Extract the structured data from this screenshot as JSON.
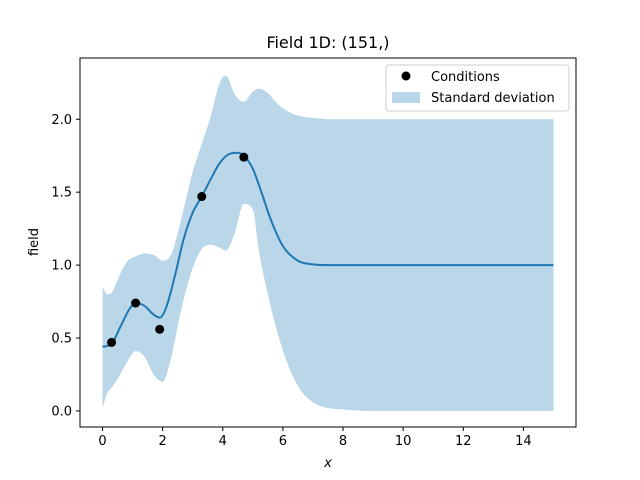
{
  "chart_data": {
    "type": "line",
    "title": "Field 1D: (151,)",
    "xlabel": "x",
    "ylabel": "field",
    "xlim": [
      -0.75,
      15.75
    ],
    "ylim": [
      -0.11,
      2.42
    ],
    "xticks": [
      "0",
      "2",
      "4",
      "6",
      "8",
      "10",
      "12",
      "14"
    ],
    "yticks": [
      "0.0",
      "0.5",
      "1.0",
      "1.5",
      "2.0"
    ],
    "xtick_values": [
      0,
      2,
      4,
      6,
      8,
      10,
      12,
      14
    ],
    "ytick_values": [
      0.0,
      0.5,
      1.0,
      1.5,
      2.0
    ],
    "grid": false,
    "legend_position": "upper right",
    "legend": [
      "Conditions",
      "Standard deviation"
    ],
    "colors": {
      "mean": "#1f77b4",
      "band": "#bad6e9",
      "conditions": "#000000"
    },
    "mean": {
      "x": [
        0.0,
        0.3,
        0.6,
        0.9,
        1.1,
        1.4,
        1.7,
        1.9,
        2.1,
        2.4,
        2.7,
        3.0,
        3.3,
        3.6,
        3.9,
        4.2,
        4.5,
        4.7,
        5.0,
        5.3,
        5.6,
        6.0,
        6.5,
        7.0,
        7.5,
        8.0,
        9.0,
        10.0,
        12.0,
        14.0,
        15.0
      ],
      "y": [
        0.44,
        0.46,
        0.58,
        0.7,
        0.74,
        0.72,
        0.66,
        0.64,
        0.7,
        0.92,
        1.18,
        1.36,
        1.47,
        1.59,
        1.7,
        1.76,
        1.77,
        1.75,
        1.66,
        1.49,
        1.31,
        1.13,
        1.03,
        1.005,
        1.0,
        1.0,
        1.0,
        1.0,
        1.0,
        1.0,
        1.0
      ]
    },
    "std_band": {
      "x": [
        0.0,
        0.15,
        0.3,
        0.5,
        0.8,
        1.1,
        1.4,
        1.7,
        2.0,
        2.3,
        2.6,
        3.0,
        3.3,
        3.6,
        3.9,
        4.1,
        4.4,
        4.7,
        5.0,
        5.2,
        5.5,
        5.8,
        6.2,
        6.6,
        7.0,
        7.5,
        8.0,
        9.0,
        10.0,
        12.0,
        14.0,
        15.0
      ],
      "lower": [
        0.02,
        0.12,
        0.16,
        0.22,
        0.33,
        0.41,
        0.37,
        0.25,
        0.2,
        0.38,
        0.68,
        0.98,
        1.11,
        1.14,
        1.12,
        1.1,
        1.22,
        1.42,
        1.38,
        1.1,
        0.8,
        0.55,
        0.3,
        0.14,
        0.06,
        0.02,
        0.01,
        0.0,
        0.0,
        0.0,
        0.0,
        0.0
      ],
      "upper": [
        0.85,
        0.8,
        0.81,
        0.9,
        1.02,
        1.06,
        1.08,
        1.07,
        1.03,
        1.08,
        1.3,
        1.64,
        1.83,
        2.02,
        2.25,
        2.3,
        2.17,
        2.12,
        2.19,
        2.21,
        2.18,
        2.11,
        2.05,
        2.02,
        2.01,
        2.0,
        2.0,
        2.0,
        2.0,
        2.0,
        2.0,
        2.0
      ]
    },
    "conditions": {
      "x": [
        0.3,
        1.1,
        1.9,
        3.3,
        4.7
      ],
      "y": [
        0.47,
        0.74,
        0.56,
        1.47,
        1.74
      ]
    }
  }
}
